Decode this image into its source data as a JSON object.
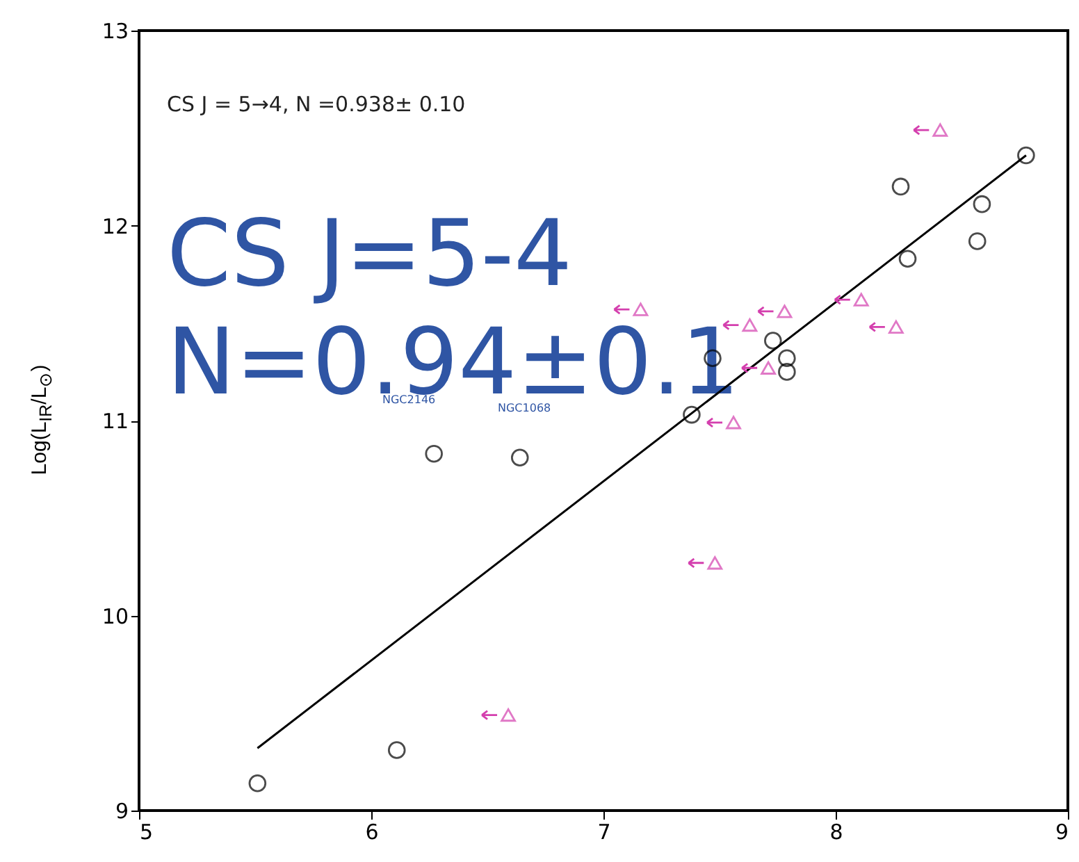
{
  "chart_data": {
    "type": "scatter",
    "ylabel": "Log(L$_{IR}$/L$_{⊙}$)",
    "xlim": [
      5,
      9
    ],
    "ylim": [
      9,
      13
    ],
    "xticks": [
      5,
      6,
      7,
      8,
      9
    ],
    "yticks": [
      9,
      10,
      11,
      12,
      13
    ],
    "annotations": [
      "CS J = 5→4, N =0.938± 0.10",
      "CS J=5-4",
      "N=0.94±0.1",
      "NGC2146",
      "NGC1068"
    ],
    "series": [
      {
        "type": "scatter",
        "marker": "circle",
        "color": "#000000",
        "x": [
          5.51,
          6.11,
          6.27,
          6.64,
          7.38,
          7.47,
          7.73,
          7.79,
          7.79,
          8.31,
          8.28,
          8.63,
          8.61,
          8.82
        ],
        "values": [
          9.14,
          9.31,
          10.83,
          10.81,
          11.03,
          11.32,
          11.41,
          11.32,
          11.25,
          11.83,
          12.2,
          12.11,
          11.92,
          12.36
        ]
      },
      {
        "type": "scatter",
        "marker": "triangle",
        "color": "#d43fae",
        "x": [
          8.45,
          7.16,
          7.78,
          7.63,
          8.11,
          8.26,
          7.71,
          7.56,
          7.48,
          6.59
        ],
        "values": [
          12.49,
          11.57,
          11.56,
          11.49,
          11.62,
          11.48,
          11.27,
          10.99,
          10.27,
          9.49
        ]
      },
      {
        "type": "line",
        "color": "#000000",
        "x": [
          5.51,
          8.82
        ],
        "values": [
          9.32,
          12.36
        ]
      }
    ]
  }
}
